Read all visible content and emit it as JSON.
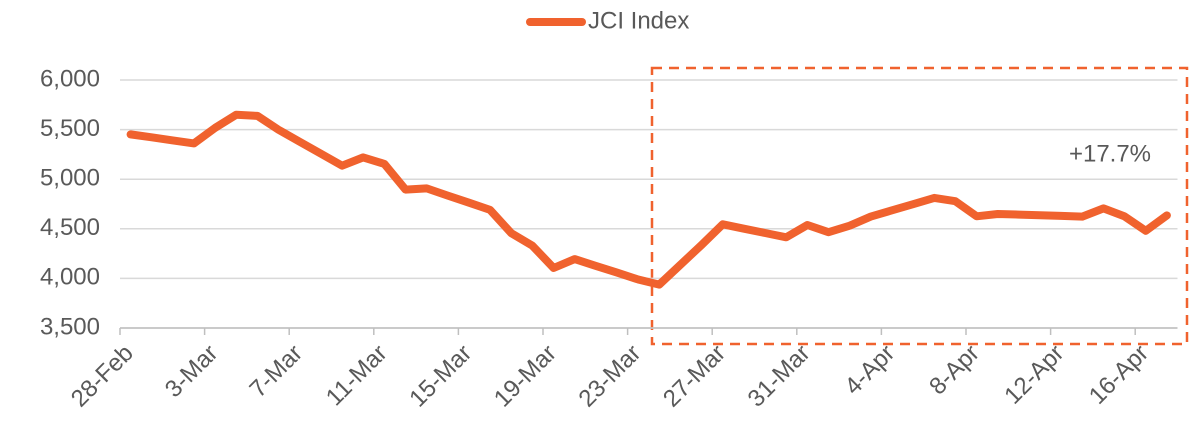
{
  "chart_data": {
    "type": "line",
    "legend": "top",
    "annotation": "+17.7%",
    "categories": [
      "28-Feb",
      null,
      null,
      null,
      "3-Mar",
      null,
      null,
      null,
      "7-Mar",
      null,
      null,
      null,
      "11-Mar",
      null,
      null,
      null,
      "15-Mar",
      null,
      null,
      null,
      "19-Mar",
      null,
      null,
      null,
      "23-Mar",
      null,
      null,
      null,
      "27-Mar",
      null,
      null,
      null,
      "31-Mar",
      null,
      null,
      null,
      "4-Apr",
      null,
      null,
      null,
      "8-Apr",
      null,
      null,
      null,
      "12-Apr",
      null,
      null,
      null,
      "16-Apr",
      null
    ],
    "series": [
      {
        "name": "JCI Index",
        "color": "#f0622e",
        "values": [
          5452,
          5422,
          5391,
          5361,
          5518,
          5650,
          5638,
          5498,
          5377,
          5257,
          5136,
          5220,
          5154,
          4895,
          4907,
          4835,
          4763,
          4691,
          4456,
          4330,
          4105,
          4195,
          4126,
          4058,
          3989,
          3937,
          4138,
          4338,
          4545,
          4501,
          4458,
          4414,
          4538,
          4466,
          4531,
          4623,
          4686,
          4748,
          4811,
          4778,
          4626,
          4649,
          4643,
          4636,
          4630,
          4623,
          4706,
          4625,
          4480,
          4635
        ]
      }
    ],
    "ylim": [
      3500,
      6000
    ],
    "yticks": [
      {
        "value": 3500,
        "label": "3,500"
      },
      {
        "value": 4000,
        "label": "4,000"
      },
      {
        "value": 4500,
        "label": "4,500"
      },
      {
        "value": 5000,
        "label": "5,000"
      },
      {
        "value": 5500,
        "label": "5,500"
      },
      {
        "value": 6000,
        "label": "6,000"
      }
    ],
    "grid": true
  }
}
